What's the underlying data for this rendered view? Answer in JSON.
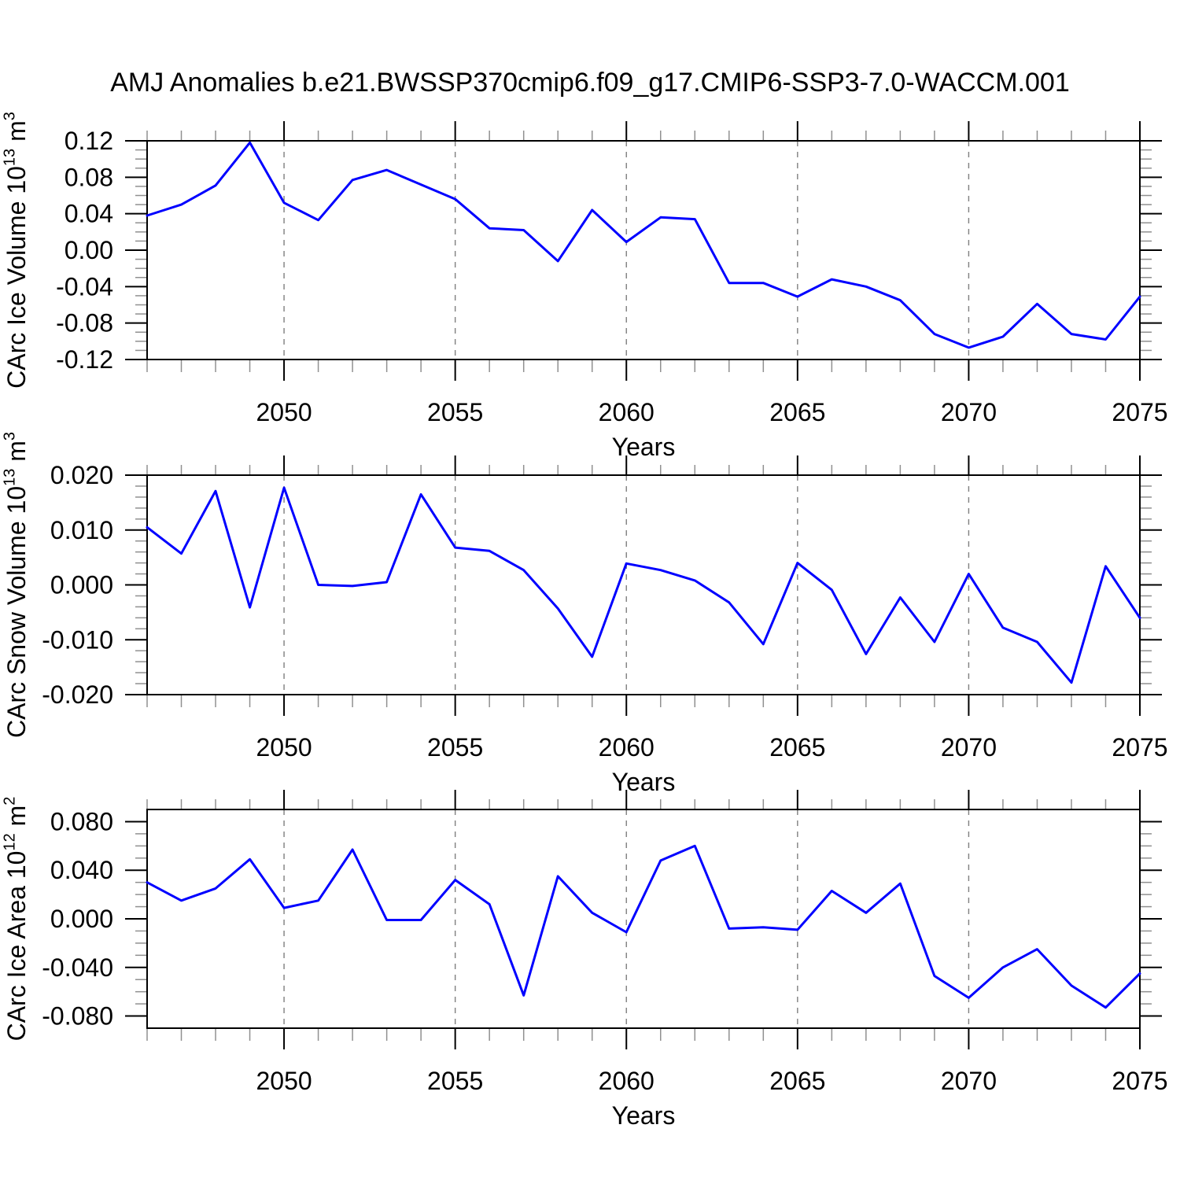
{
  "title": "AMJ Anomalies b.e21.BWSSP370cmip6.f09_g17.CMIP6-SSP3-7.0-WACCM.001",
  "line_color": "#0000ff",
  "axis_color": "#000000",
  "minor_tick_color": "#909090",
  "grid_color": "#7f7f7f",
  "x_axis": {
    "label": "Years",
    "range": [
      2046,
      2075
    ],
    "major_ticks": [
      2050,
      2055,
      2060,
      2065,
      2070,
      2075
    ],
    "gridline_years": [
      2050,
      2055,
      2060,
      2065,
      2070
    ],
    "minor_step": 1
  },
  "chart_data": [
    {
      "type": "line",
      "name": "carc-ice-volume",
      "ylabel": "CArc Ice Volume 10^13 m^3",
      "xlabel": "Years",
      "ylim": [
        -0.12,
        0.12
      ],
      "yticks": [
        0.12,
        0.08,
        0.04,
        0.0,
        -0.04,
        -0.08,
        -0.12
      ],
      "ytick_decimals": 2,
      "yminor_step": 0.01,
      "x": [
        2046,
        2047,
        2048,
        2049,
        2050,
        2051,
        2052,
        2053,
        2054,
        2055,
        2056,
        2057,
        2058,
        2059,
        2060,
        2061,
        2062,
        2063,
        2064,
        2065,
        2066,
        2067,
        2068,
        2069,
        2070,
        2071,
        2072,
        2073,
        2074,
        2075
      ],
      "values": [
        0.038,
        0.05,
        0.071,
        0.118,
        0.052,
        0.033,
        0.077,
        0.088,
        0.072,
        0.056,
        0.024,
        0.022,
        -0.012,
        0.044,
        0.009,
        0.036,
        0.034,
        -0.036,
        -0.036,
        -0.051,
        -0.032,
        -0.04,
        -0.055,
        -0.092,
        -0.107,
        -0.095,
        -0.059,
        -0.092,
        -0.098,
        -0.051
      ]
    },
    {
      "type": "line",
      "name": "carc-snow-volume",
      "ylabel": "CArc Snow Volume 10^13 m^3",
      "xlabel": "Years",
      "ylim": [
        -0.02,
        0.02
      ],
      "yticks": [
        0.02,
        0.01,
        0.0,
        -0.01,
        -0.02
      ],
      "ytick_decimals": 3,
      "yminor_step": 0.002,
      "x": [
        2046,
        2047,
        2048,
        2049,
        2050,
        2051,
        2052,
        2053,
        2054,
        2055,
        2056,
        2057,
        2058,
        2059,
        2060,
        2061,
        2062,
        2063,
        2064,
        2065,
        2066,
        2067,
        2068,
        2069,
        2070,
        2071,
        2072,
        2073,
        2074,
        2075
      ],
      "values": [
        0.0105,
        0.0057,
        0.0171,
        -0.0041,
        0.0177,
        0.0,
        -0.0002,
        0.0005,
        0.0165,
        0.0068,
        0.0062,
        0.0027,
        -0.0043,
        -0.0131,
        0.0039,
        0.0027,
        0.0008,
        -0.0032,
        -0.0108,
        0.004,
        -0.0009,
        -0.0126,
        -0.0023,
        -0.0104,
        0.002,
        -0.0078,
        -0.0104,
        -0.0178,
        0.0034,
        -0.006
      ]
    },
    {
      "type": "line",
      "name": "carc-ice-area",
      "ylabel": "CArc Ice Area 10^12 m^2",
      "xlabel": "Years",
      "ylim": [
        -0.09,
        0.09
      ],
      "yticks": [
        0.08,
        0.04,
        0.0,
        -0.04,
        -0.08
      ],
      "ytick_decimals": 3,
      "yminor_step": 0.01,
      "x": [
        2046,
        2047,
        2048,
        2049,
        2050,
        2051,
        2052,
        2053,
        2054,
        2055,
        2056,
        2057,
        2058,
        2059,
        2060,
        2061,
        2062,
        2063,
        2064,
        2065,
        2066,
        2067,
        2068,
        2069,
        2070,
        2071,
        2072,
        2073,
        2074,
        2075
      ],
      "values": [
        0.03,
        0.015,
        0.025,
        0.049,
        0.009,
        0.015,
        0.057,
        -0.001,
        -0.001,
        0.032,
        0.012,
        -0.063,
        0.035,
        0.005,
        -0.011,
        0.048,
        0.06,
        -0.008,
        -0.007,
        -0.009,
        0.023,
        0.005,
        0.029,
        -0.047,
        -0.065,
        -0.04,
        -0.025,
        -0.055,
        -0.073,
        -0.045
      ]
    }
  ]
}
